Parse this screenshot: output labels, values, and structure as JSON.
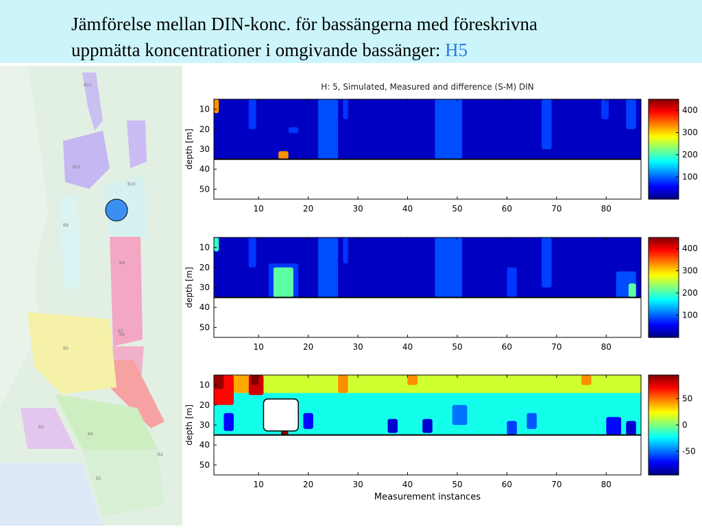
{
  "slide": {
    "title_line1": "Jämförelse mellan DIN-konc. för bassängerna med föreskrivna",
    "title_line2": "uppmätta koncentrationer i omgivande bassänger:",
    "title_accent": "H5"
  },
  "map": {
    "marker_color": "#3b8ff0",
    "region_colors": [
      "#cdbdf0",
      "#f4a8c4",
      "#f7a3a3",
      "#f5f0a8",
      "#cdeec0",
      "#d8f4ef"
    ],
    "labels": [
      "B11",
      "B12",
      "B10",
      "B9",
      "B8",
      "B7",
      "B6",
      "B5",
      "B4",
      "B3",
      "B2",
      "B1"
    ]
  },
  "chart_data": [
    {
      "type": "heatmap",
      "title": "H: 5, Simulated, Measured and difference (S-M) DIN",
      "ylabel": "depth [m]",
      "xlabel": "",
      "x_ticks": [
        10,
        20,
        30,
        40,
        50,
        60,
        70,
        80
      ],
      "y_ticks": [
        10,
        20,
        30,
        40,
        50
      ],
      "xlim": [
        1,
        87
      ],
      "ylim": [
        55,
        5
      ],
      "bottom_depth": 35,
      "colorbar_ticks": [
        400,
        300,
        200,
        100
      ],
      "colorbar_range": [
        0,
        450
      ],
      "background": 30,
      "features": [
        {
          "x": [
            1,
            2
          ],
          "z": [
            5,
            12
          ],
          "v": 330
        },
        {
          "x": [
            8,
            9.5
          ],
          "z": [
            5,
            20
          ],
          "v": 80
        },
        {
          "x": [
            22,
            26
          ],
          "z": [
            5,
            35
          ],
          "v": 90
        },
        {
          "x": [
            27,
            28
          ],
          "z": [
            5,
            15
          ],
          "v": 80
        },
        {
          "x": [
            45.5,
            51
          ],
          "z": [
            5,
            35
          ],
          "v": 90
        },
        {
          "x": [
            67,
            69
          ],
          "z": [
            5,
            30
          ],
          "v": 85
        },
        {
          "x": [
            79,
            80.5
          ],
          "z": [
            5,
            15
          ],
          "v": 80
        },
        {
          "x": [
            84,
            86
          ],
          "z": [
            5,
            20
          ],
          "v": 85
        },
        {
          "x": [
            16,
            18
          ],
          "z": [
            19,
            22
          ],
          "v": 80
        },
        {
          "x": [
            14,
            16
          ],
          "z": [
            31,
            35
          ],
          "v": 330
        }
      ]
    },
    {
      "type": "heatmap",
      "title": "",
      "ylabel": "depth [m]",
      "xlabel": "",
      "x_ticks": [
        10,
        20,
        30,
        40,
        50,
        60,
        70,
        80
      ],
      "y_ticks": [
        10,
        20,
        30,
        40,
        50
      ],
      "xlim": [
        1,
        87
      ],
      "ylim": [
        55,
        5
      ],
      "bottom_depth": 35,
      "colorbar_ticks": [
        400,
        300,
        200,
        100
      ],
      "colorbar_range": [
        0,
        450
      ],
      "background": 30,
      "features": [
        {
          "x": [
            1,
            2
          ],
          "z": [
            5,
            12
          ],
          "v": 190
        },
        {
          "x": [
            8,
            9.5
          ],
          "z": [
            5,
            20
          ],
          "v": 80
        },
        {
          "x": [
            12,
            18
          ],
          "z": [
            18,
            35
          ],
          "v": 80
        },
        {
          "x": [
            13,
            17
          ],
          "z": [
            20,
            35
          ],
          "v": 210
        },
        {
          "x": [
            22,
            26
          ],
          "z": [
            5,
            35
          ],
          "v": 90
        },
        {
          "x": [
            27,
            28
          ],
          "z": [
            5,
            18
          ],
          "v": 80
        },
        {
          "x": [
            45.5,
            51
          ],
          "z": [
            5,
            35
          ],
          "v": 90
        },
        {
          "x": [
            60,
            62
          ],
          "z": [
            20,
            35
          ],
          "v": 80
        },
        {
          "x": [
            67,
            69
          ],
          "z": [
            5,
            30
          ],
          "v": 85
        },
        {
          "x": [
            82,
            86
          ],
          "z": [
            22,
            35
          ],
          "v": 90
        },
        {
          "x": [
            84.5,
            86
          ],
          "z": [
            28,
            35
          ],
          "v": 210
        }
      ]
    },
    {
      "type": "heatmap",
      "title": "",
      "ylabel": "depth [m]",
      "xlabel": "Measurement instances",
      "x_ticks": [
        10,
        20,
        30,
        40,
        50,
        60,
        70,
        80
      ],
      "y_ticks": [
        10,
        20,
        30,
        40,
        50
      ],
      "xlim": [
        1,
        87
      ],
      "ylim": [
        55,
        5
      ],
      "bottom_depth": 35,
      "colorbar_ticks": [
        50,
        0,
        -50
      ],
      "colorbar_range": [
        -95,
        95
      ],
      "background": -20,
      "blank_patch": {
        "x": [
          11,
          18
        ],
        "z": [
          17,
          33
        ]
      },
      "features": [
        {
          "x": [
            1,
            87
          ],
          "z": [
            5,
            14
          ],
          "v": 15
        },
        {
          "x": [
            1,
            5
          ],
          "z": [
            5,
            20
          ],
          "v": 70
        },
        {
          "x": [
            1,
            3
          ],
          "z": [
            5,
            12
          ],
          "v": 90
        },
        {
          "x": [
            8,
            11
          ],
          "z": [
            5,
            15
          ],
          "v": 80
        },
        {
          "x": [
            8.5,
            10
          ],
          "z": [
            5,
            10
          ],
          "v": 95
        },
        {
          "x": [
            5,
            8
          ],
          "z": [
            5,
            14
          ],
          "v": 40
        },
        {
          "x": [
            26,
            28
          ],
          "z": [
            5,
            14
          ],
          "v": 45
        },
        {
          "x": [
            40,
            42
          ],
          "z": [
            5,
            10
          ],
          "v": 45
        },
        {
          "x": [
            75,
            77
          ],
          "z": [
            5,
            10
          ],
          "v": 45
        },
        {
          "x": [
            3,
            5
          ],
          "z": [
            24,
            33
          ],
          "v": -70
        },
        {
          "x": [
            19,
            21
          ],
          "z": [
            24,
            32
          ],
          "v": -70
        },
        {
          "x": [
            36,
            38
          ],
          "z": [
            27,
            34
          ],
          "v": -80
        },
        {
          "x": [
            43,
            45
          ],
          "z": [
            27,
            34
          ],
          "v": -80
        },
        {
          "x": [
            49,
            52
          ],
          "z": [
            20,
            30
          ],
          "v": -50
        },
        {
          "x": [
            60,
            62
          ],
          "z": [
            28,
            35
          ],
          "v": -60
        },
        {
          "x": [
            64,
            66
          ],
          "z": [
            24,
            32
          ],
          "v": -55
        },
        {
          "x": [
            80,
            83
          ],
          "z": [
            26,
            35
          ],
          "v": -70
        },
        {
          "x": [
            84,
            86
          ],
          "z": [
            28,
            35
          ],
          "v": -80
        },
        {
          "x": [
            14.5,
            16
          ],
          "z": [
            33,
            35
          ],
          "v": 95
        }
      ]
    }
  ]
}
